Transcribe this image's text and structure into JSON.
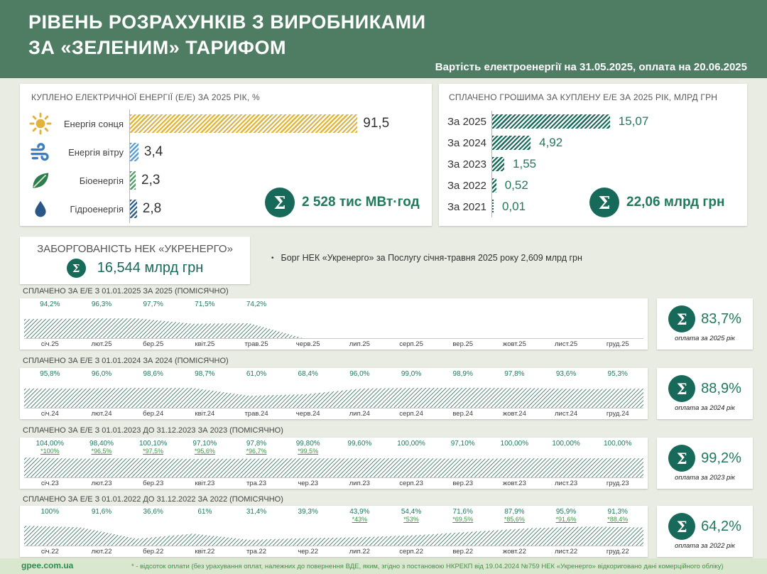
{
  "header": {
    "title_line1": "РІВЕНЬ РОЗРАХУНКІВ З ВИРОБНИКАМИ",
    "title_line2": "ЗА «ЗЕЛЕНИМ» ТАРИФОМ",
    "subtitle": "Вартість електроенергії на 31.05.2025, оплата на 20.06.2025"
  },
  "icons": {
    "sigma": "Σ",
    "bullet": "•"
  },
  "colors": {
    "header_bg": "#4e7d64",
    "page_bg": "#e9ece2",
    "accent": "#17695a",
    "value_green": "#1f7a5c",
    "star_green": "#3f9246",
    "area_green": "#2e6b56",
    "footer_bg": "#dae7cf",
    "footer_green": "#2f8a4c",
    "solar_yellow": "#e2b33c",
    "wind_blue": "#5b9bd5",
    "bio_green": "#4f9e62",
    "hydro_blue": "#2e5f8c"
  },
  "debt": {
    "title": "ЗАБОРГОВАНІСТЬ НЕК «УКРЕНЕРГО»",
    "amount": "16,544 млрд грн",
    "note": "Борг НЕК «Укренерго» за Послугу січня-травня 2025 року 2,609 млрд грн"
  },
  "footer": {
    "site": "gpee.com.ua",
    "note": "* - відсоток оплати (без урахування оплат, належних до повернення ВДЕ, яким, згідно з постановою НКРЕКП від 19.04.2024  №759 НЕК «Укренерго» відкориговано дані комерційного обліку)"
  },
  "chart_data": [
    {
      "type": "bar",
      "orientation": "horizontal",
      "title": "КУПЛЕНО ЕЛЕКТРИЧНОЇ ЕНЕРГІЇ (Е/Е) ЗА 2025 РІК, %",
      "categories": [
        "Енергія сонця",
        "Енергія вітру",
        "Біоенергія",
        "Гідроенергія"
      ],
      "values": [
        91.5,
        3.4,
        2.3,
        2.8
      ],
      "value_labels": [
        "91,5",
        "3,4",
        "2,3",
        "2,8"
      ],
      "icons": [
        "sun-icon",
        "wind-icon",
        "leaf-icon",
        "drop-icon"
      ],
      "bar_colors": [
        "#e2b33c",
        "#5b9bd5",
        "#4f9e62",
        "#2e5f8c"
      ],
      "unit": "%",
      "total_label": "2 528 тис МВт·год"
    },
    {
      "type": "bar",
      "orientation": "horizontal",
      "title": "СПЛАЧЕНО ГРОШИМА ЗА КУПЛЕНУ Е/Е ЗА 2025 РІК, МЛРД ГРН",
      "categories": [
        "За 2025",
        "За 2024",
        "За 2023",
        "За 2022",
        "За 2021"
      ],
      "values": [
        15.07,
        4.92,
        1.55,
        0.52,
        0.01
      ],
      "value_labels": [
        "15,07",
        "4,92",
        "1,55",
        "0,52",
        "0,01"
      ],
      "unit": "млрд грн",
      "total_label": "22,06 млрд грн"
    },
    {
      "type": "area",
      "title": "СПЛАЧЕНО ЗА Е/Е З 01.01.2025 ЗА 2025  (ПОМІСЯЧНО)",
      "categories": [
        "січ.25",
        "лют.25",
        "бер.25",
        "квіт.25",
        "трав.25",
        "черв.25",
        "лип.25",
        "серп.25",
        "вер.25",
        "жовт.25",
        "лист.25",
        "груд.25"
      ],
      "values": [
        94.2,
        96.3,
        97.7,
        71.5,
        74.2,
        0,
        0,
        0,
        0,
        0,
        0,
        0
      ],
      "point_labels": [
        "94,2%",
        "96,3%",
        "97,7%",
        "71,5%",
        "74,2%",
        "",
        "",
        "",
        "",
        "",
        "",
        ""
      ],
      "adjusted_labels": [
        "",
        "",
        "",
        "",
        "",
        "",
        "",
        "",
        "",
        "",
        "",
        ""
      ],
      "ylim": [
        0,
        98
      ],
      "total": "83,7%",
      "caption": "оплата за 2025 рік"
    },
    {
      "type": "area",
      "title": "СПЛАЧЕНО ЗА Е/Е З 01.01.2024 ЗА 2024  (ПОМІСЯЧНО)",
      "categories": [
        "січ.24",
        "лют.24",
        "бер.24",
        "квіт.24",
        "трав.24",
        "черв.24",
        "лип.24",
        "серп.24",
        "вер.24",
        "жовт.24",
        "лист.24",
        "груд.24"
      ],
      "values": [
        95.8,
        96.0,
        98.6,
        98.7,
        61.0,
        68.4,
        96.0,
        99.0,
        98.9,
        97.8,
        93.6,
        95.3
      ],
      "point_labels": [
        "95,8%",
        "96,0%",
        "98,6%",
        "98,7%",
        "61,0%",
        "68,4%",
        "96,0%",
        "99,0%",
        "98,9%",
        "97,8%",
        "93,6%",
        "95,3%"
      ],
      "adjusted_labels": [
        "",
        "",
        "",
        "",
        "",
        "",
        "",
        "",
        "",
        "",
        "",
        ""
      ],
      "ylim": [
        0,
        99
      ],
      "total": "88,9%",
      "caption": "оплата за 2024 рік"
    },
    {
      "type": "area",
      "title": "СПЛАЧЕНО ЗА Е/Е З 01.01.2023 ДО 31.12.2023 ЗА 2023  (ПОМІСЯЧНО)",
      "categories": [
        "січ.23",
        "лют.23",
        "бер.23",
        "квіт.23",
        "тра.23",
        "чер.23",
        "лип.23",
        "серп.23",
        "вер.23",
        "жовт.23",
        "лист.23",
        "груд.23"
      ],
      "values": [
        104.0,
        98.4,
        100.1,
        97.1,
        97.8,
        99.8,
        99.6,
        100.0,
        97.1,
        100.0,
        100.0,
        100.0
      ],
      "point_labels": [
        "104,00%",
        "98,40%",
        "100,10%",
        "97,10%",
        "97,8%",
        "99,80%",
        "99,60%",
        "100,00%",
        "97,10%",
        "100,00%",
        "100,00%",
        "100,00%"
      ],
      "adjusted_labels": [
        "*100%",
        "*96,5%",
        "*97,5%",
        "*95,6%",
        "*96,7%",
        "*99,5%",
        "",
        "",
        "",
        "",
        "",
        ""
      ],
      "ylim": [
        0,
        104
      ],
      "total": "99,2%",
      "caption": "оплата за 2023 рік"
    },
    {
      "type": "area",
      "title": "СПЛАЧЕНО ЗА Е/Е З 01.01.2022 ДО 31.12.2022 ЗА 2022 (ПОМІСЯЧНО)",
      "categories": [
        "січ.22",
        "лют.22",
        "бер.22",
        "квіт.22",
        "тра.22",
        "чер.22",
        "лип.22",
        "серп.22",
        "вер.22",
        "жовт.22",
        "лист.22",
        "груд.22"
      ],
      "values": [
        100,
        91.6,
        36.6,
        61,
        31.4,
        39.3,
        43.9,
        54.4,
        71.6,
        87.9,
        95.9,
        91.3
      ],
      "point_labels": [
        "100%",
        "91,6%",
        "36,6%",
        "61%",
        "31,4%",
        "39,3%",
        "43,9%",
        "54,4%",
        "71,6%",
        "87,9%",
        "95,9%",
        "91,3%"
      ],
      "adjusted_labels": [
        "",
        "",
        "",
        "",
        "",
        "",
        "*43%",
        "*53%",
        "*69,5%",
        "*85,6%",
        "*91,6%",
        "*88,4%"
      ],
      "ylim": [
        0,
        100
      ],
      "total": "64,2%",
      "caption": "оплата за 2022 рік"
    }
  ]
}
